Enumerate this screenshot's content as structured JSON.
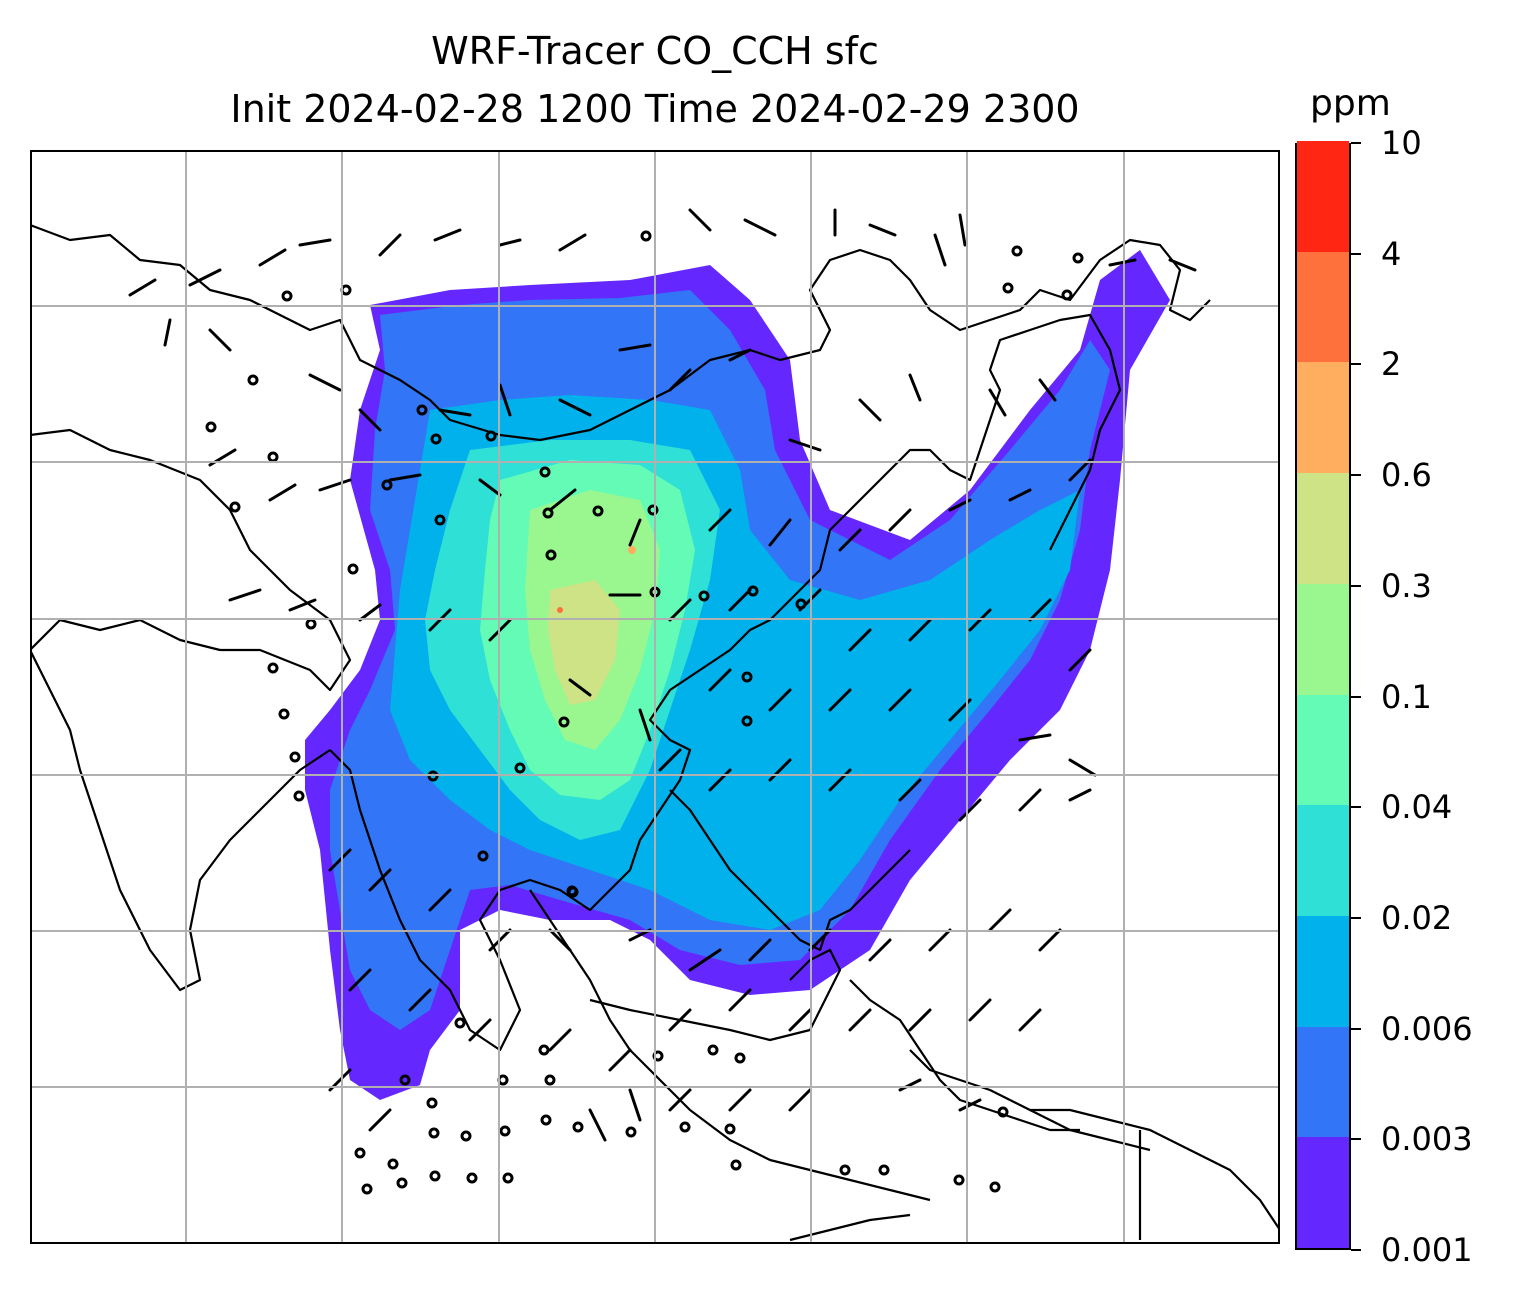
{
  "header": {
    "title_line1": "WRF-Tracer CO_CCH sfc",
    "title_line2": "Init 2024-02-28 1200 Time 2024-02-29 2300"
  },
  "colorbar": {
    "unit": "ppm",
    "ticks": [
      "0.001",
      "0.003",
      "0.006",
      "0.02",
      "0.04",
      "0.1",
      "0.3",
      "0.6",
      "2",
      "4",
      "10"
    ],
    "colors": [
      "#6428ff",
      "#3275f6",
      "#00b1ec",
      "#2ee0d5",
      "#64fbb6",
      "#9af78f",
      "#cde385",
      "#ffad5e",
      "#ff713c",
      "#ff2714"
    ]
  },
  "map": {
    "gridlines": true,
    "features": [
      "coastlines",
      "country-borders",
      "wind-barbs",
      "calm-wind-circles",
      "concentration-fill"
    ]
  }
}
